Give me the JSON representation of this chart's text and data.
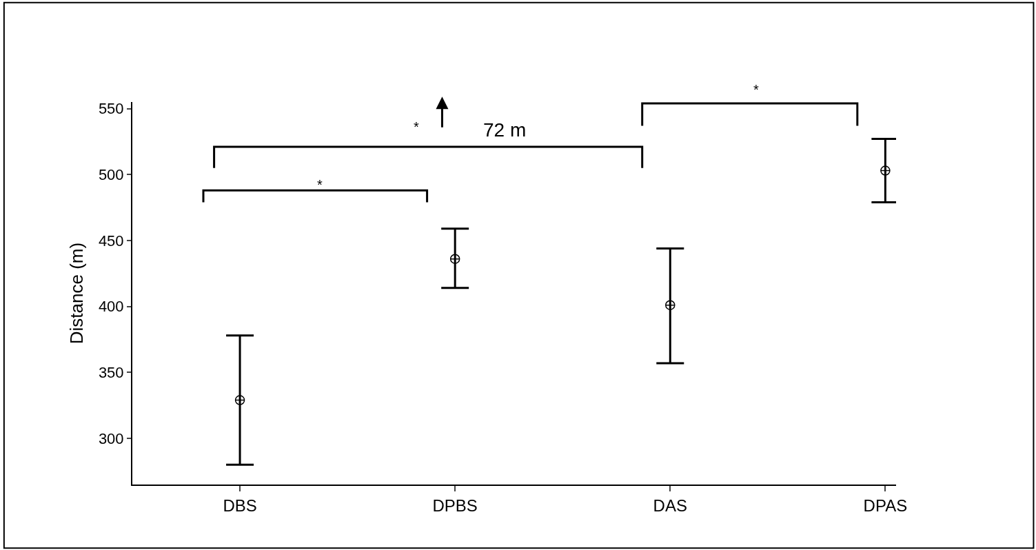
{
  "chart_data": {
    "type": "scatter",
    "ylabel": "Distance (m)",
    "categories": [
      "DBS",
      "DPBS",
      "DAS",
      "DPAS"
    ],
    "values": [
      329,
      436,
      401,
      503
    ],
    "errors": [
      [
        280,
        378
      ],
      [
        414,
        459
      ],
      [
        357,
        444
      ],
      [
        479,
        527
      ]
    ],
    "color": "#000000",
    "marker": "cross",
    "ylim": [
      265,
      555
    ],
    "yticks": [
      300,
      350,
      400,
      450,
      500,
      550
    ],
    "legend": false,
    "annotations": [
      "*",
      "*",
      "*",
      "72 m"
    ]
  }
}
